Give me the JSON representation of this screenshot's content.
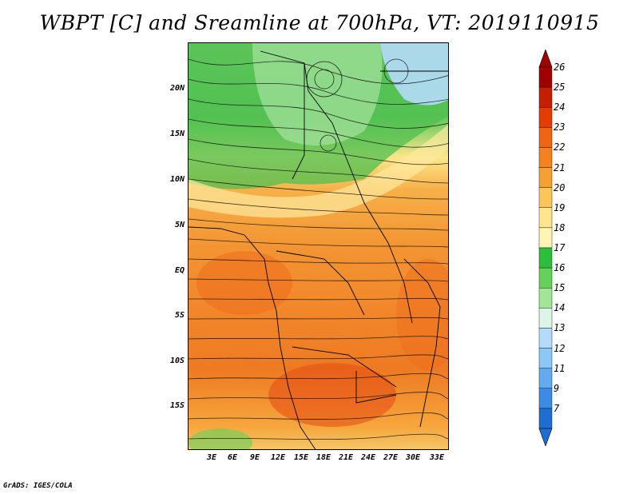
{
  "title": "WBPT [C] and Sreamline at 700hPa, VT: 2019110915",
  "credit": "GrADS: IGES/COLA",
  "map": {
    "lat_labels": [
      "20N",
      "15N",
      "10N",
      "5N",
      "EQ",
      "5S",
      "10S",
      "15S"
    ],
    "lon_labels": [
      "3E",
      "6E",
      "9E",
      "12E",
      "15E",
      "18E",
      "21E",
      "24E",
      "27E",
      "30E",
      "33E"
    ]
  },
  "colorbar": {
    "labels": [
      "26",
      "25",
      "24",
      "23",
      "22",
      "21",
      "20",
      "19",
      "18",
      "17",
      "16",
      "15",
      "14",
      "13",
      "12",
      "11",
      "9",
      "7"
    ],
    "colors": [
      "#a00000",
      "#c81e00",
      "#e63c00",
      "#f06414",
      "#f5821e",
      "#f7a032",
      "#fbc55a",
      "#ffe68c",
      "#fff5b4",
      "#2dbe3c",
      "#64d25a",
      "#a0e696",
      "#dcf5e6",
      "#b4dcfa",
      "#8cc8f5",
      "#64aaf0",
      "#3c8ce6",
      "#1e6ed2"
    ]
  }
}
